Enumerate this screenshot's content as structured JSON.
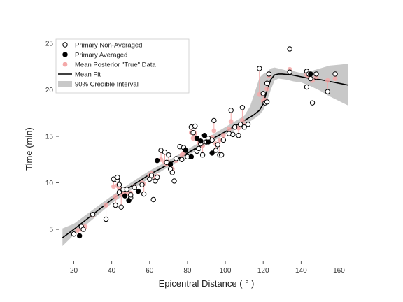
{
  "chart_data": {
    "type": "scatter",
    "title": "",
    "xlabel": "Epicentral Distance ( ° )",
    "ylabel": "Time (min)",
    "xlim": [
      15,
      165
    ],
    "ylim": [
      2,
      25.3
    ],
    "xticks": [
      "20",
      "40",
      "60",
      "80",
      "100",
      "120",
      "140",
      "160"
    ],
    "yticks": [
      "5",
      "10",
      "15",
      "20",
      "25"
    ],
    "legend": {
      "placement": "upper-left",
      "entries": [
        {
          "label": "Primary Non-Averaged"
        },
        {
          "label": "Primary Averaged"
        },
        {
          "label": "Mean Posterior \"True\" Data"
        },
        {
          "label": "Mean Fit"
        },
        {
          "label": "90% Credible Interval"
        }
      ]
    },
    "colors": {
      "posterior": "#f4a9a9",
      "fit": "#000000",
      "interval": "#c8c8c8"
    },
    "series": [
      {
        "name": "Primary Non-Averaged",
        "points": [
          [
            20,
            4.5
          ],
          [
            24,
            5.3
          ],
          [
            25,
            5.0
          ],
          [
            30,
            6.6
          ],
          [
            37,
            6.1
          ],
          [
            41,
            10.4
          ],
          [
            42,
            7.6
          ],
          [
            43,
            10.3
          ],
          [
            43,
            10.6
          ],
          [
            44,
            9.0
          ],
          [
            44,
            9.8
          ],
          [
            45,
            7.4
          ],
          [
            46,
            9.3
          ],
          [
            48,
            9.3
          ],
          [
            50,
            8.4
          ],
          [
            50,
            8.7
          ],
          [
            52,
            9.5
          ],
          [
            56,
            9.8
          ],
          [
            57,
            8.8
          ],
          [
            60,
            10.4
          ],
          [
            61,
            10.8
          ],
          [
            62,
            8.2
          ],
          [
            63,
            10.2
          ],
          [
            64,
            10.6
          ],
          [
            66,
            13.5
          ],
          [
            68,
            13.3
          ],
          [
            69,
            12.2
          ],
          [
            70,
            13.0
          ],
          [
            71,
            11.5
          ],
          [
            72,
            11.1
          ],
          [
            73,
            10.2
          ],
          [
            74,
            12.6
          ],
          [
            76,
            13.9
          ],
          [
            77,
            12.5
          ],
          [
            78,
            13.8
          ],
          [
            80,
            12.8
          ],
          [
            82,
            16.0
          ],
          [
            83,
            15.4
          ],
          [
            84,
            16.1
          ],
          [
            85,
            13.4
          ],
          [
            86,
            13.7
          ],
          [
            87,
            14.2
          ],
          [
            88,
            13.0
          ],
          [
            90,
            14.4
          ],
          [
            91,
            14.8
          ],
          [
            93,
            14.6
          ],
          [
            94,
            16.7
          ],
          [
            95,
            13.5
          ],
          [
            96,
            14.1
          ],
          [
            97,
            13.0
          ],
          [
            98,
            13.0
          ],
          [
            99,
            14.6
          ],
          [
            102,
            15.3
          ],
          [
            103,
            17.8
          ],
          [
            104,
            15.2
          ],
          [
            105,
            16.0
          ],
          [
            107,
            15.1
          ],
          [
            108,
            16.3
          ],
          [
            109,
            18.1
          ],
          [
            110,
            16.0
          ],
          [
            112,
            16.3
          ],
          [
            118,
            22.3
          ],
          [
            120,
            19.6
          ],
          [
            121,
            18.6
          ],
          [
            122,
            18.7
          ],
          [
            122,
            20.7
          ],
          [
            123,
            21.7
          ],
          [
            134,
            24.4
          ],
          [
            134,
            21.9
          ],
          [
            143,
            22.0
          ],
          [
            143,
            20.3
          ],
          [
            144,
            21.7
          ],
          [
            145,
            21.2
          ],
          [
            146,
            18.6
          ],
          [
            148,
            21.7
          ],
          [
            154,
            19.8
          ],
          [
            158,
            21.7
          ]
        ]
      },
      {
        "name": "Primary Averaged",
        "points": [
          [
            23,
            4.3
          ],
          [
            47,
            8.6
          ],
          [
            49,
            8.1
          ],
          [
            54,
            9.1
          ],
          [
            64,
            12.4
          ],
          [
            71,
            12.0
          ],
          [
            79,
            13.5
          ],
          [
            82,
            12.8
          ],
          [
            85,
            14.8
          ],
          [
            87,
            14.5
          ],
          [
            89,
            15.1
          ],
          [
            91,
            14.4
          ],
          [
            93,
            13.2
          ],
          [
            145,
            21.7
          ]
        ]
      },
      {
        "name": "Mean Posterior \"True\" Data",
        "points": [
          [
            22,
            4.9
          ],
          [
            24,
            5.0
          ],
          [
            26,
            5.3
          ],
          [
            30,
            6.5
          ],
          [
            37,
            7.6
          ],
          [
            41,
            9.6
          ],
          [
            42,
            8.5
          ],
          [
            43,
            9.7
          ],
          [
            44,
            9.4
          ],
          [
            45,
            8.8
          ],
          [
            46,
            9.0
          ],
          [
            47,
            8.9
          ],
          [
            48,
            8.9
          ],
          [
            50,
            8.9
          ],
          [
            52,
            9.6
          ],
          [
            56,
            10.0
          ],
          [
            57,
            9.9
          ],
          [
            60,
            10.8
          ],
          [
            61,
            11.0
          ],
          [
            63,
            10.6
          ],
          [
            64,
            10.7
          ],
          [
            66,
            12.5
          ],
          [
            68,
            12.2
          ],
          [
            69,
            12.0
          ],
          [
            70,
            12.1
          ],
          [
            72,
            11.5
          ],
          [
            74,
            12.4
          ],
          [
            77,
            13.0
          ],
          [
            78,
            13.2
          ],
          [
            82,
            15.4
          ],
          [
            83,
            14.8
          ],
          [
            84,
            15.3
          ],
          [
            86,
            14.3
          ],
          [
            87,
            14.2
          ],
          [
            88,
            14.0
          ],
          [
            90,
            14.4
          ],
          [
            93,
            14.9
          ],
          [
            94,
            15.6
          ],
          [
            95,
            14.2
          ],
          [
            97,
            14.6
          ],
          [
            99,
            15.1
          ],
          [
            102,
            15.8
          ],
          [
            103,
            16.6
          ],
          [
            105,
            16.0
          ],
          [
            107,
            15.9
          ],
          [
            109,
            16.7
          ],
          [
            110,
            16.2
          ],
          [
            118,
            19.5
          ],
          [
            120,
            18.8
          ],
          [
            121,
            18.9
          ],
          [
            122,
            20.1
          ],
          [
            123,
            21.5
          ],
          [
            134,
            22.2
          ],
          [
            143,
            21.6
          ],
          [
            144,
            21.5
          ],
          [
            146,
            21.0
          ],
          [
            148,
            21.4
          ],
          [
            154,
            21.0
          ],
          [
            158,
            21.2
          ]
        ]
      }
    ],
    "mean_fit": {
      "x": [
        14,
        20,
        30,
        40,
        50,
        60,
        70,
        80,
        90,
        100,
        110,
        115,
        118,
        120,
        122,
        124,
        126,
        128,
        130,
        135,
        140,
        145,
        150,
        155,
        160,
        165
      ],
      "y": [
        4.1,
        5.0,
        6.6,
        8.2,
        9.6,
        10.9,
        12.0,
        13.2,
        14.4,
        15.5,
        16.7,
        17.3,
        17.8,
        18.5,
        19.9,
        21.1,
        21.6,
        21.7,
        21.7,
        21.6,
        21.4,
        21.2,
        21.1,
        20.9,
        20.7,
        20.5
      ]
    },
    "credible_interval_90": {
      "x": [
        14,
        20,
        30,
        40,
        50,
        60,
        70,
        80,
        90,
        100,
        110,
        113,
        116,
        118,
        120,
        122,
        124,
        126,
        128,
        132,
        136,
        140,
        145,
        150,
        155,
        160,
        165
      ],
      "lower": [
        3.2,
        4.4,
        6.1,
        7.8,
        9.2,
        10.5,
        11.7,
        12.9,
        14.1,
        15.2,
        16.2,
        16.6,
        17.0,
        17.3,
        17.8,
        18.8,
        20.0,
        21.0,
        21.2,
        21.1,
        20.9,
        20.8,
        20.4,
        19.9,
        19.3,
        18.8,
        18.3
      ],
      "upper": [
        5.1,
        5.6,
        7.1,
        8.6,
        10.0,
        11.3,
        12.4,
        13.6,
        14.8,
        16.0,
        17.2,
        18.2,
        20.0,
        21.3,
        21.7,
        21.9,
        22.3,
        22.4,
        22.3,
        22.1,
        22.0,
        21.8,
        22.0,
        22.3,
        22.6,
        22.7,
        22.8
      ]
    }
  }
}
